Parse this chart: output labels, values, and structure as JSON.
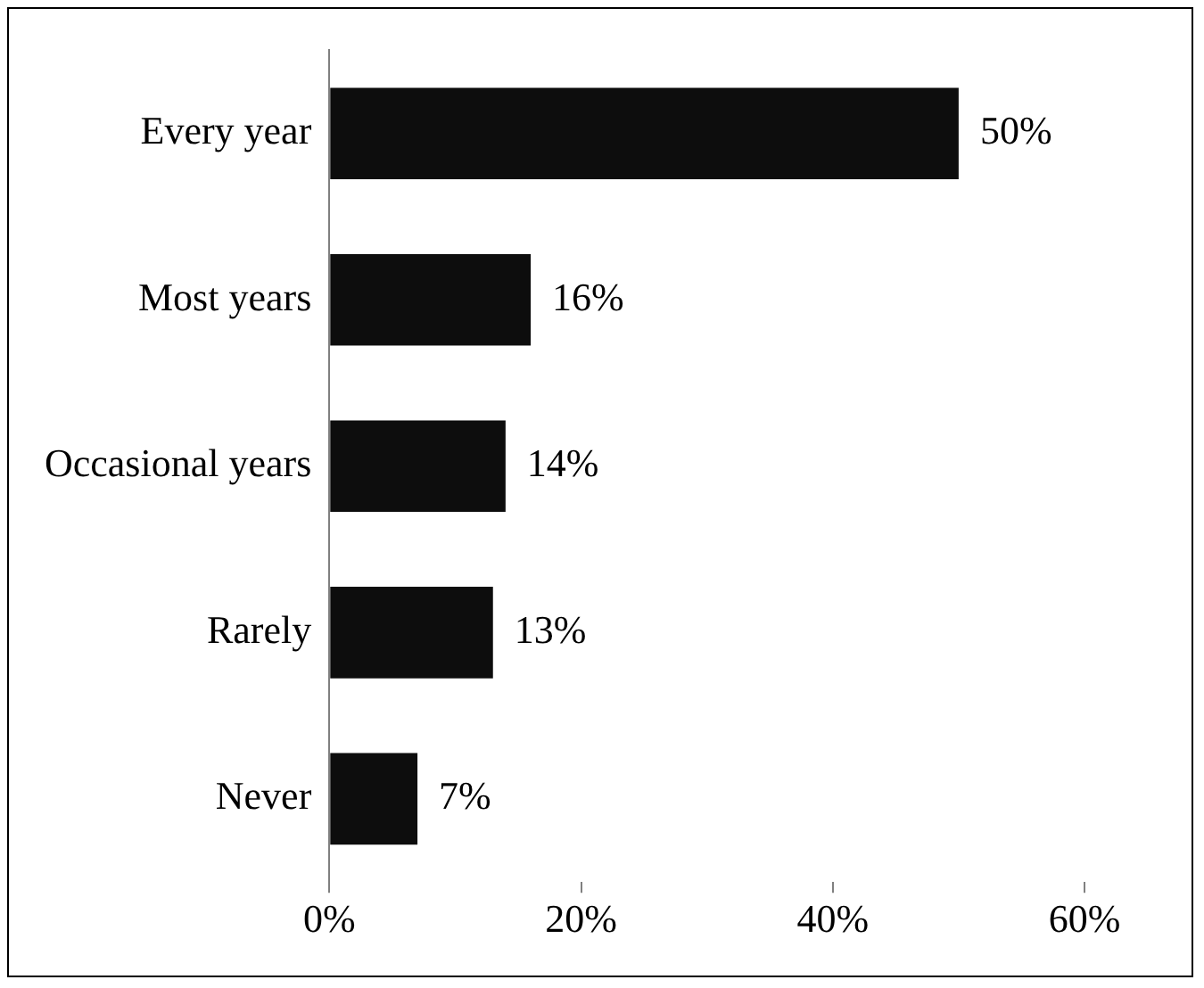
{
  "chart_data": {
    "type": "bar",
    "orientation": "horizontal",
    "categories": [
      "Every year",
      "Most years",
      "Occasional years",
      "Rarely",
      "Never"
    ],
    "values": [
      50,
      16,
      14,
      13,
      7
    ],
    "value_labels": [
      "50%",
      "16%",
      "14%",
      "13%",
      "7%"
    ],
    "color": "#0d0d0d",
    "xlim": [
      0,
      60
    ],
    "xticks": [
      {
        "value": 0,
        "label": "0%"
      },
      {
        "value": 20,
        "label": "20%"
      },
      {
        "value": 40,
        "label": "40%"
      },
      {
        "value": 60,
        "label": "60%"
      }
    ],
    "grid": false,
    "legend": false
  }
}
